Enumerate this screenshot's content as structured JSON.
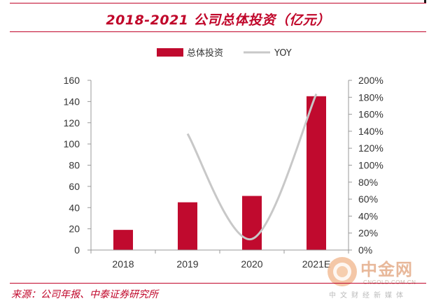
{
  "title": "2018-2021 公司总体投资（亿元）",
  "source": "来源：公司年报、中泰证券研究所",
  "watermark": {
    "name": "中金网",
    "url": "CNGOLD.COM.CN",
    "tagline": "中文财经新媒体"
  },
  "colors": {
    "accent": "#c0062a",
    "bar": "#c00a2e",
    "line": "#c8c8c8"
  },
  "chart_data": {
    "type": "bar",
    "categories": [
      "2018",
      "2019",
      "2020",
      "2021E"
    ],
    "series": [
      {
        "name": "总体投资",
        "type": "bar",
        "axis": "left",
        "values": [
          19,
          45,
          51,
          145
        ]
      },
      {
        "name": "YOY",
        "type": "line",
        "axis": "right",
        "values": [
          null,
          1.37,
          0.13,
          1.84
        ]
      }
    ],
    "left_axis": {
      "min": 0,
      "max": 160,
      "ticks": [
        "0",
        "20",
        "40",
        "60",
        "80",
        "100",
        "120",
        "140",
        "160"
      ]
    },
    "right_axis": {
      "min": 0,
      "max": 2.0,
      "ticks": [
        "0%",
        "20%",
        "40%",
        "60%",
        "80%",
        "100%",
        "120%",
        "140%",
        "160%",
        "180%",
        "200%"
      ]
    },
    "legend_position": "top-center",
    "grid": false
  }
}
